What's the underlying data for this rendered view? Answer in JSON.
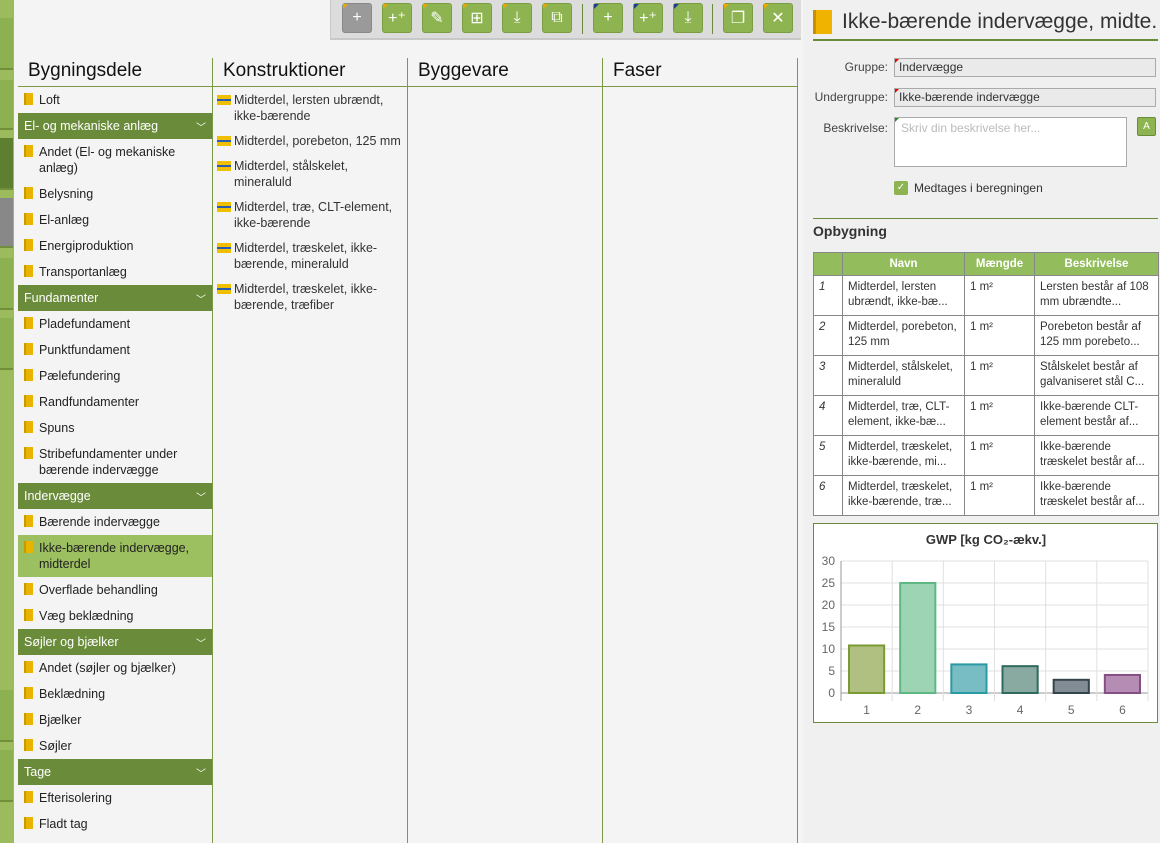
{
  "toolbar": {
    "buttons": [
      {
        "icon": "plus-icon",
        "glyph": "+"
      },
      {
        "icon": "add-multiple-icon",
        "glyph": "+⁺"
      },
      {
        "icon": "edit-icon",
        "glyph": "✎"
      },
      {
        "icon": "hierarchy-icon",
        "glyph": "⊞"
      },
      {
        "icon": "download-icon",
        "glyph": "⤓"
      },
      {
        "icon": "external-link-icon",
        "glyph": "⧉"
      },
      {
        "icon": "plus-icon",
        "glyph": "+"
      },
      {
        "icon": "add-multiple-icon",
        "glyph": "+⁺"
      },
      {
        "icon": "download-icon",
        "glyph": "⤓"
      },
      {
        "icon": "copy-icon",
        "glyph": "❐"
      },
      {
        "icon": "close-icon",
        "glyph": "✕"
      }
    ]
  },
  "columns": {
    "bygningsdele": "Bygningsdele",
    "konstruktioner": "Konstruktioner",
    "byggevare": "Byggevare",
    "faser": "Faser"
  },
  "bygningsdele": [
    {
      "type": "item",
      "label": "Loft"
    },
    {
      "type": "group",
      "label": "El- og mekaniske anlæg"
    },
    {
      "type": "item",
      "label": "Andet (El- og mekaniske anlæg)"
    },
    {
      "type": "item",
      "label": "Belysning"
    },
    {
      "type": "item",
      "label": "El-anlæg"
    },
    {
      "type": "item",
      "label": "Energiproduktion"
    },
    {
      "type": "item",
      "label": "Transportanlæg"
    },
    {
      "type": "group",
      "label": "Fundamenter"
    },
    {
      "type": "item",
      "label": "Pladefundament"
    },
    {
      "type": "item",
      "label": "Punktfundament"
    },
    {
      "type": "item",
      "label": "Pælefundering"
    },
    {
      "type": "item",
      "label": "Randfundamenter"
    },
    {
      "type": "item",
      "label": "Spuns"
    },
    {
      "type": "item",
      "label": "Stribefundamenter under bærende indervægge"
    },
    {
      "type": "group",
      "label": "Indervægge"
    },
    {
      "type": "item",
      "label": "Bærende indervægge"
    },
    {
      "type": "item",
      "label": "Ikke-bærende indervægge, midterdel",
      "selected": true
    },
    {
      "type": "item",
      "label": "Overflade behandling"
    },
    {
      "type": "item",
      "label": "Væg beklædning"
    },
    {
      "type": "group",
      "label": "Søjler og bjælker"
    },
    {
      "type": "item",
      "label": "Andet (søjler og bjælker)"
    },
    {
      "type": "item",
      "label": "Beklædning"
    },
    {
      "type": "item",
      "label": "Bjælker"
    },
    {
      "type": "item",
      "label": "Søjler"
    },
    {
      "type": "group",
      "label": "Tage"
    },
    {
      "type": "item",
      "label": "Efterisolering"
    },
    {
      "type": "item",
      "label": "Fladt tag"
    }
  ],
  "konstruktioner": [
    "Midterdel, lersten ubrændt, ikke-bærende",
    "Midterdel, porebeton, 125 mm",
    "Midterdel, stålskelet, mineraluld",
    "Midterdel, træ, CLT-element, ikke-bærende",
    "Midterdel, træskelet, ikke-bærende, mineraluld",
    "Midterdel, træskelet, ikke-bærende, træfiber"
  ],
  "detail": {
    "title": "Ikke-bærende indervægge, midte...",
    "gruppe_label": "Gruppe:",
    "gruppe": "Indervægge",
    "undergruppe_label": "Undergruppe:",
    "undergruppe": "Ikke-bærende indervægge",
    "beskrivelse_label": "Beskrivelse:",
    "beskrivelse_placeholder": "Skriv din beskrivelse her...",
    "medtages": "Medtages i beregningen",
    "opbygning": "Opbygning"
  },
  "table": {
    "headers": [
      "",
      "Navn",
      "Mængde",
      "Beskrivelse"
    ],
    "rows": [
      [
        "1",
        "Midterdel, lersten ubrændt, ikke-bæ...",
        "1 m²",
        "Lersten består af 108 mm ubrændte..."
      ],
      [
        "2",
        "Midterdel, porebeton, 125 mm",
        "1 m²",
        "Porebeton består af 125 mm porebeto..."
      ],
      [
        "3",
        "Midterdel, stålskelet, mineraluld",
        "1 m²",
        "Stålskelet består af galvaniseret stål C..."
      ],
      [
        "4",
        "Midterdel, træ, CLT-element, ikke-bæ...",
        "1 m²",
        "Ikke-bærende CLT-element består af..."
      ],
      [
        "5",
        "Midterdel, træskelet, ikke-bærende, mi...",
        "1 m²",
        "Ikke-bærende træskelet består af..."
      ],
      [
        "6",
        "Midterdel, træskelet, ikke-bærende, træ...",
        "1 m²",
        "Ikke-bærende træskelet består af..."
      ]
    ]
  },
  "chart_data": {
    "type": "bar",
    "title": "GWP [kg CO₂-ækv.]",
    "categories": [
      "1",
      "2",
      "3",
      "4",
      "5",
      "6"
    ],
    "values": [
      10.8,
      25,
      6.5,
      6.1,
      3,
      4.1
    ],
    "ylim": [
      0,
      30
    ],
    "yticks": [
      "0",
      "5",
      "10",
      "15",
      "20",
      "25",
      "30"
    ],
    "grid": true,
    "colors": [
      [
        "#b0c080",
        "#7a9a35"
      ],
      [
        "#9dd4b4",
        "#5fb884"
      ],
      [
        "#78bcc4",
        "#2a9aa4"
      ],
      [
        "#88aaa0",
        "#2f6a5c"
      ],
      [
        "#828c94",
        "#34444c"
      ],
      [
        "#b48cb4",
        "#845084"
      ]
    ]
  }
}
